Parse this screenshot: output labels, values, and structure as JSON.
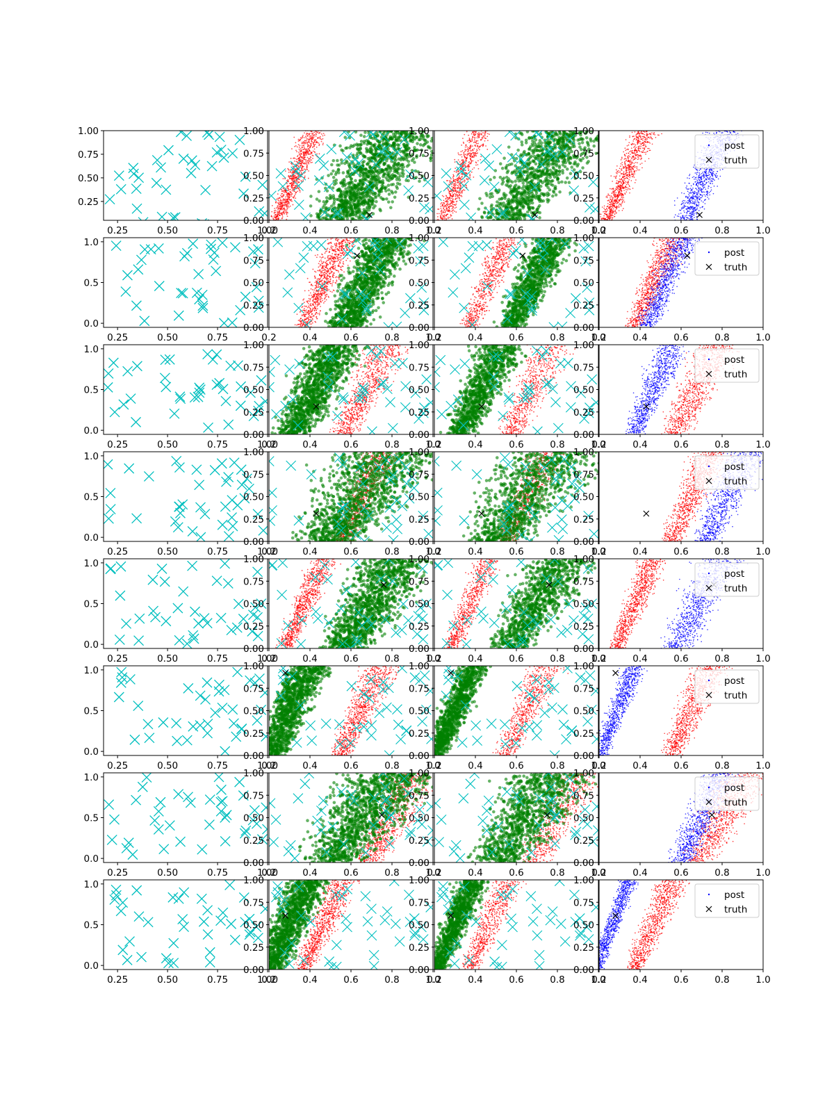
{
  "figure": {
    "grid_rows": 8,
    "grid_cols": 4,
    "legend_labels": {
      "post": "post",
      "truth": "truth"
    },
    "colors": {
      "samples": "#00bfbf",
      "prior": "#ff0000",
      "weighted": "#008000",
      "posterior": "#0000ff",
      "truth": "#000000",
      "axes": "#000000"
    }
  },
  "chart_data": [
    {
      "row": 1,
      "truth": [
        0.69,
        0.06
      ],
      "red_band": [
        0.26,
        0.4
      ],
      "green_band": [
        0.45,
        0.95
      ],
      "blue_band": [
        0.62,
        0.82
      ],
      "legend": true,
      "col1": {
        "type": "scatter",
        "xlim": [
          0.18,
          1.0
        ],
        "ylim": [
          0.05,
          1.0
        ],
        "xticks": [
          "0.25",
          "0.50",
          "0.75",
          "1.00"
        ],
        "xtick_vals": [
          0.25,
          0.5,
          0.75,
          1.0
        ],
        "yticks": [
          "0.25",
          "0.50",
          "0.75",
          "1.00"
        ],
        "ytick_vals": [
          0.25,
          0.5,
          0.75,
          1.0
        ]
      }
    },
    {
      "row": 2,
      "truth": [
        0.63,
        0.8
      ],
      "red_band": [
        0.38,
        0.55
      ],
      "green_band": [
        0.56,
        0.8
      ],
      "blue_band": [
        0.45,
        0.6
      ],
      "legend": true,
      "col1": {
        "type": "scatter",
        "xlim": [
          0.18,
          1.0
        ],
        "ylim": [
          -0.05,
          1.05
        ],
        "xticks": [
          "0.25",
          "0.50",
          "0.75"
        ],
        "xtick_vals": [
          0.25,
          0.5,
          0.75
        ],
        "yticks": [
          "0.0",
          "0.5",
          "1.0"
        ],
        "ytick_vals": [
          0.0,
          0.5,
          1.0
        ]
      }
    },
    {
      "row": 3,
      "truth": [
        0.43,
        0.31
      ],
      "red_band": [
        0.55,
        0.8
      ],
      "green_band": [
        0.3,
        0.56
      ],
      "blue_band": [
        0.38,
        0.55
      ],
      "legend": true,
      "col1": {
        "type": "scatter",
        "xlim": [
          0.18,
          1.0
        ],
        "ylim": [
          -0.05,
          1.05
        ],
        "xticks": [
          "0.25",
          "0.50",
          "0.75",
          "1.00"
        ],
        "xtick_vals": [
          0.25,
          0.5,
          0.75,
          1.0
        ],
        "yticks": [
          "0.0",
          "0.5",
          "1.0"
        ],
        "ytick_vals": [
          0.0,
          0.5,
          1.0
        ]
      }
    },
    {
      "row": 4,
      "truth": [
        0.43,
        0.31
      ],
      "red_band": [
        0.55,
        0.75
      ],
      "green_band": [
        0.35,
        0.95
      ],
      "blue_band": [
        0.7,
        0.95
      ],
      "legend": true,
      "col1": {
        "type": "scatter",
        "xlim": [
          0.18,
          1.0
        ],
        "ylim": [
          -0.05,
          1.05
        ],
        "xticks": [
          "0.25",
          "0.50",
          "0.75",
          "1.00"
        ],
        "xtick_vals": [
          0.25,
          0.5,
          0.75,
          1.0
        ],
        "yticks": [
          "0.0",
          "0.5",
          "1.0"
        ],
        "ytick_vals": [
          0.0,
          0.5,
          1.0
        ]
      }
    },
    {
      "row": 5,
      "truth": [
        0.76,
        0.71
      ],
      "red_band": [
        0.3,
        0.45
      ],
      "green_band": [
        0.5,
        0.9
      ],
      "blue_band": [
        0.55,
        0.82
      ],
      "legend": true,
      "col1": {
        "type": "scatter",
        "xlim": [
          0.18,
          1.0
        ],
        "ylim": [
          -0.05,
          1.05
        ],
        "xticks": [
          "0.25",
          "0.50",
          "0.75",
          "1.00"
        ],
        "xtick_vals": [
          0.25,
          0.5,
          0.75,
          1.0
        ],
        "yticks": [
          "0.0",
          "0.5",
          "1.0"
        ],
        "ytick_vals": [
          0.0,
          0.5,
          1.0
        ]
      }
    },
    {
      "row": 6,
      "truth": [
        0.28,
        0.92
      ],
      "red_band": [
        0.55,
        0.75
      ],
      "green_band": [
        0.22,
        0.38
      ],
      "blue_band": [
        0.24,
        0.34
      ],
      "legend": true,
      "col1": {
        "type": "scatter",
        "xlim": [
          0.18,
          1.0
        ],
        "ylim": [
          -0.05,
          1.05
        ],
        "xticks": [
          "0.25",
          "0.50",
          "0.75",
          "1.00"
        ],
        "xtick_vals": [
          0.25,
          0.5,
          0.75,
          1.0
        ],
        "yticks": [
          "0.0",
          "0.5",
          "1.0"
        ],
        "ytick_vals": [
          0.0,
          0.5,
          1.0
        ]
      }
    },
    {
      "row": 7,
      "truth": [
        0.75,
        0.53
      ],
      "red_band": [
        0.65,
        0.95
      ],
      "green_band": [
        0.4,
        0.9
      ],
      "blue_band": [
        0.6,
        0.8
      ],
      "legend": true,
      "col1": {
        "type": "scatter",
        "xlim": [
          0.18,
          1.0
        ],
        "ylim": [
          -0.05,
          1.05
        ],
        "xticks": [
          "0.25",
          "0.50",
          "0.75",
          "1.00"
        ],
        "xtick_vals": [
          0.25,
          0.5,
          0.75,
          1.0
        ],
        "yticks": [
          "0.0",
          "0.5",
          "1.0"
        ],
        "ytick_vals": [
          0.0,
          0.5,
          1.0
        ]
      }
    },
    {
      "row": 8,
      "truth": [
        0.28,
        0.6
      ],
      "red_band": [
        0.38,
        0.55
      ],
      "green_band": [
        0.22,
        0.38
      ],
      "blue_band": [
        0.23,
        0.3
      ],
      "legend": true,
      "col1": {
        "type": "scatter",
        "xlim": [
          0.18,
          1.0
        ],
        "ylim": [
          -0.05,
          1.05
        ],
        "xticks": [
          "0.25",
          "0.50",
          "0.75",
          "1.00"
        ],
        "xtick_vals": [
          0.25,
          0.5,
          0.75,
          1.0
        ],
        "yticks": [
          "0.0",
          "0.5",
          "1.0"
        ],
        "ytick_vals": [
          0.0,
          0.5,
          1.0
        ]
      }
    }
  ],
  "shared_axes": {
    "type": "scatter",
    "xlim": [
      0.2,
      1.0
    ],
    "ylim": [
      0.0,
      1.0
    ],
    "xticks": [
      "0.2",
      "0.4",
      "0.6",
      "0.8",
      "1.0"
    ],
    "xtick_vals": [
      0.2,
      0.4,
      0.6,
      0.8,
      1.0
    ],
    "yticks": [
      "0.00",
      "0.25",
      "0.50",
      "0.75",
      "1.00"
    ],
    "ytick_vals": [
      0.0,
      0.25,
      0.5,
      0.75,
      1.0
    ]
  }
}
